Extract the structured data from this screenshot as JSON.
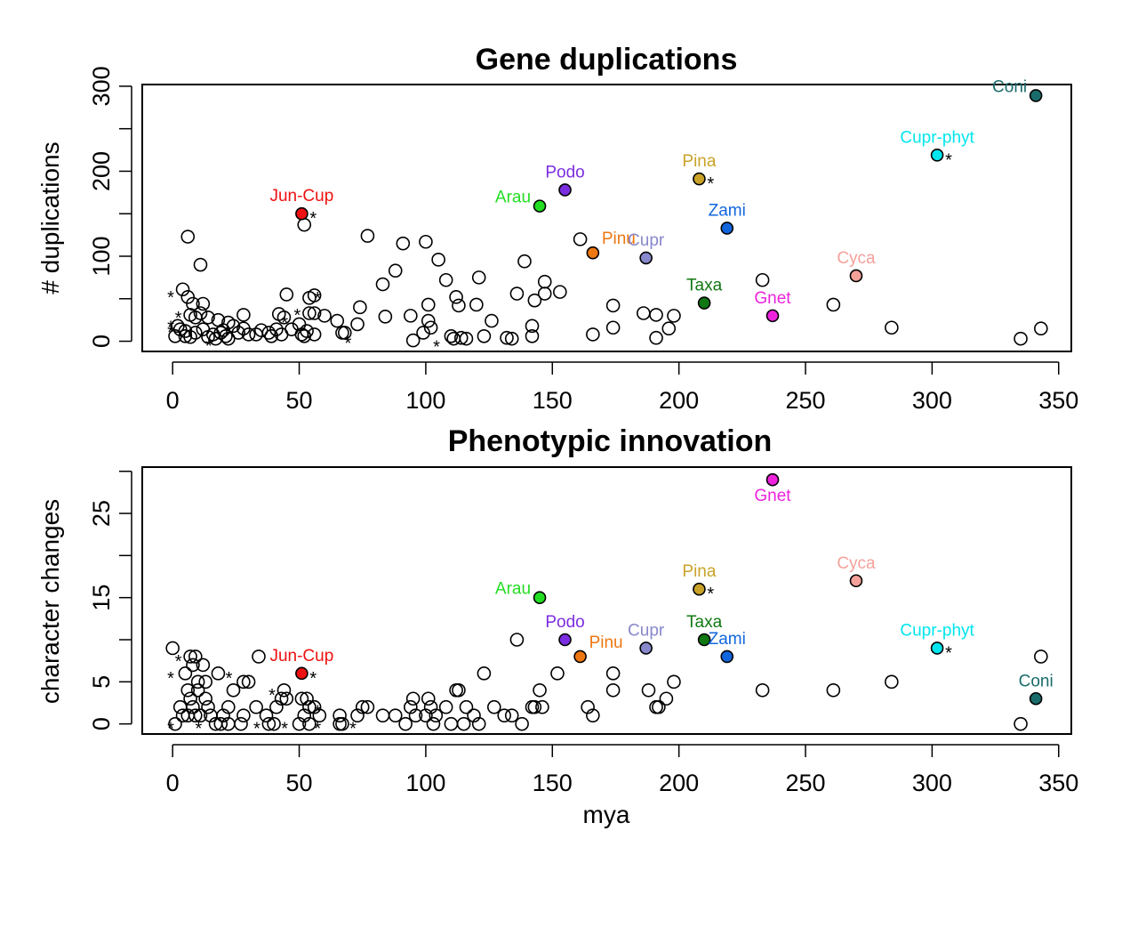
{
  "chart_data": [
    {
      "type": "scatter",
      "title": "Gene duplications",
      "xlabel": "",
      "ylabel": "# duplications",
      "xlim": [
        -12,
        355
      ],
      "ylim": [
        -12,
        302
      ],
      "x_ticks": [
        0,
        50,
        100,
        150,
        200,
        250,
        300,
        350
      ],
      "y_ticks": [
        0,
        100,
        200,
        300
      ],
      "y_minor_ticks": [
        50,
        150,
        250
      ],
      "clades": [
        {
          "label": "Coni",
          "x": 341,
          "y": 289,
          "color": "#1a6b6b",
          "label_pos": "left"
        },
        {
          "label": "Cupr-phyt",
          "x": 302,
          "y": 219,
          "color": "#00e5ee",
          "star": true,
          "label_pos": "above"
        },
        {
          "label": "Pina",
          "x": 208,
          "y": 191,
          "color": "#c9a227",
          "star": true,
          "label_pos": "above"
        },
        {
          "label": "Podo",
          "x": 155,
          "y": 178,
          "color": "#7b2ee0",
          "label_pos": "above"
        },
        {
          "label": "Arau",
          "x": 145,
          "y": 159,
          "color": "#22dd22",
          "label_pos": "left"
        },
        {
          "label": "Jun-Cup",
          "x": 51,
          "y": 150,
          "color": "#ee1111",
          "star": true,
          "label_pos": "above"
        },
        {
          "label": "Zami",
          "x": 219,
          "y": 133,
          "color": "#1166dd",
          "label_pos": "above"
        },
        {
          "label": "Pinu",
          "x": 166,
          "y": 104,
          "color": "#ee7711",
          "label_pos": "right"
        },
        {
          "label": "Cupr",
          "x": 187,
          "y": 98,
          "color": "#8888cc",
          "label_pos": "above"
        },
        {
          "label": "Cyca",
          "x": 270,
          "y": 77,
          "color": "#f4a19a",
          "label_pos": "above"
        },
        {
          "label": "Taxa",
          "x": 210,
          "y": 45,
          "color": "#117711",
          "label_pos": "above"
        },
        {
          "label": "Gnet",
          "x": 237,
          "y": 30,
          "color": "#ee22dd",
          "label_pos": "above"
        }
      ],
      "points": [
        [
          52,
          137
        ],
        [
          6,
          123
        ],
        [
          77,
          124
        ],
        [
          11,
          90
        ],
        [
          91,
          115
        ],
        [
          100,
          117
        ],
        [
          105,
          96
        ],
        [
          139,
          94
        ],
        [
          161,
          120
        ],
        [
          88,
          83
        ],
        [
          83,
          67
        ],
        [
          108,
          72
        ],
        [
          121,
          75
        ],
        [
          147,
          70
        ],
        [
          136,
          56
        ],
        [
          147,
          56
        ],
        [
          153,
          58
        ],
        [
          143,
          48
        ],
        [
          112,
          52
        ],
        [
          113,
          42
        ],
        [
          101,
          43
        ],
        [
          120,
          43
        ],
        [
          174,
          42
        ],
        [
          233,
          72
        ],
        [
          261,
          43
        ],
        [
          6,
          52
        ],
        [
          8,
          44
        ],
        [
          12,
          44
        ],
        [
          4,
          61
        ],
        [
          7,
          31
        ],
        [
          9,
          28
        ],
        [
          11,
          33
        ],
        [
          14,
          28
        ],
        [
          18,
          25
        ],
        [
          22,
          22
        ],
        [
          28,
          31
        ],
        [
          42,
          32
        ],
        [
          44,
          28
        ],
        [
          45,
          55
        ],
        [
          54,
          51
        ],
        [
          56,
          54
        ],
        [
          54,
          33
        ],
        [
          56,
          33
        ],
        [
          60,
          30
        ],
        [
          65,
          24
        ],
        [
          74,
          40
        ],
        [
          73,
          20
        ],
        [
          84,
          29
        ],
        [
          94,
          30
        ],
        [
          101,
          24
        ],
        [
          102,
          16
        ],
        [
          126,
          24
        ],
        [
          142,
          18
        ],
        [
          174,
          16
        ],
        [
          186,
          33
        ],
        [
          191,
          31
        ],
        [
          198,
          30
        ],
        [
          196,
          15
        ],
        [
          166,
          8
        ],
        [
          284,
          16
        ],
        [
          343,
          15
        ],
        [
          335,
          3
        ],
        [
          2,
          18
        ],
        [
          3,
          14
        ],
        [
          5,
          12
        ],
        [
          5,
          6
        ],
        [
          7,
          5
        ],
        [
          1,
          6
        ],
        [
          9,
          10
        ],
        [
          12,
          14
        ],
        [
          14,
          5
        ],
        [
          16,
          8
        ],
        [
          17,
          3
        ],
        [
          19,
          10
        ],
        [
          20,
          13
        ],
        [
          21,
          6
        ],
        [
          22,
          3
        ],
        [
          24,
          18
        ],
        [
          26,
          10
        ],
        [
          28,
          15
        ],
        [
          30,
          8
        ],
        [
          33,
          8
        ],
        [
          35,
          13
        ],
        [
          38,
          10
        ],
        [
          39,
          6
        ],
        [
          41,
          14
        ],
        [
          43,
          8
        ],
        [
          47,
          14
        ],
        [
          50,
          20
        ],
        [
          51,
          8
        ],
        [
          52,
          6
        ],
        [
          53,
          12
        ],
        [
          56,
          8
        ],
        [
          67,
          10
        ],
        [
          68,
          10
        ],
        [
          95,
          1
        ],
        [
          99,
          10
        ],
        [
          110,
          6
        ],
        [
          111,
          3
        ],
        [
          114,
          4
        ],
        [
          116,
          3
        ],
        [
          123,
          6
        ],
        [
          132,
          4
        ],
        [
          134,
          3
        ],
        [
          142,
          6
        ],
        [
          191,
          4
        ]
      ],
      "stars": [
        [
          0,
          57
        ],
        [
          3,
          33
        ],
        [
          0,
          22
        ],
        [
          0,
          16
        ],
        [
          45,
          27
        ],
        [
          58,
          56
        ],
        [
          50,
          36
        ],
        [
          15,
          0
        ],
        [
          70,
          3
        ],
        [
          105,
          -1
        ]
      ]
    },
    {
      "type": "scatter",
      "title": "Phenotypic innovation",
      "xlabel": "mya",
      "ylabel": "character changes",
      "xlim": [
        -12,
        355
      ],
      "ylim": [
        -1.2,
        30.5
      ],
      "x_ticks": [
        0,
        50,
        100,
        150,
        200,
        250,
        300,
        350
      ],
      "y_ticks": [
        0,
        5,
        15,
        25
      ],
      "y_minor_ticks": [
        10,
        20,
        30
      ],
      "clades": [
        {
          "label": "Gnet",
          "x": 237,
          "y": 29,
          "color": "#ee22dd",
          "label_pos": "below"
        },
        {
          "label": "Cyca",
          "x": 270,
          "y": 17,
          "color": "#f4a19a",
          "label_pos": "above"
        },
        {
          "label": "Pina",
          "x": 208,
          "y": 16,
          "color": "#c9a227",
          "star": true,
          "label_pos": "above"
        },
        {
          "label": "Arau",
          "x": 145,
          "y": 15,
          "color": "#22dd22",
          "label_pos": "left"
        },
        {
          "label": "Podo",
          "x": 155,
          "y": 10,
          "color": "#7b2ee0",
          "label_pos": "above"
        },
        {
          "label": "Taxa",
          "x": 210,
          "y": 10,
          "color": "#117711",
          "label_pos": "above"
        },
        {
          "label": "Cupr",
          "x": 187,
          "y": 9,
          "color": "#8888cc",
          "label_pos": "above"
        },
        {
          "label": "Cupr-phyt",
          "x": 302,
          "y": 9,
          "color": "#00e5ee",
          "star": true,
          "label_pos": "above"
        },
        {
          "label": "Pinu",
          "x": 161,
          "y": 8,
          "color": "#ee7711",
          "label_pos": "right"
        },
        {
          "label": "Zami",
          "x": 219,
          "y": 8,
          "color": "#1166dd",
          "label_pos": "above"
        },
        {
          "label": "Jun-Cup",
          "x": 51,
          "y": 6,
          "color": "#ee1111",
          "star": true,
          "label_pos": "above"
        },
        {
          "label": "Coni",
          "x": 341,
          "y": 3,
          "color": "#1a6b6b",
          "label_pos": "above"
        }
      ],
      "points": [
        [
          0,
          9
        ],
        [
          7,
          8
        ],
        [
          9,
          8
        ],
        [
          12,
          7
        ],
        [
          34,
          8
        ],
        [
          136,
          10
        ],
        [
          8,
          7
        ],
        [
          5,
          6
        ],
        [
          18,
          6
        ],
        [
          10,
          5
        ],
        [
          13,
          5
        ],
        [
          28,
          5
        ],
        [
          30,
          5
        ],
        [
          24,
          4
        ],
        [
          44,
          4
        ],
        [
          6,
          4
        ],
        [
          10,
          4
        ],
        [
          7,
          3
        ],
        [
          13,
          3
        ],
        [
          43,
          3
        ],
        [
          45,
          3
        ],
        [
          51,
          3
        ],
        [
          53,
          3
        ],
        [
          3,
          2
        ],
        [
          8,
          2
        ],
        [
          14,
          2
        ],
        [
          22,
          2
        ],
        [
          33,
          2
        ],
        [
          41,
          2
        ],
        [
          54,
          2
        ],
        [
          56,
          2
        ],
        [
          75,
          2
        ],
        [
          77,
          2
        ],
        [
          4,
          1
        ],
        [
          6,
          1
        ],
        [
          9,
          1
        ],
        [
          11,
          1
        ],
        [
          15,
          1
        ],
        [
          20,
          1
        ],
        [
          28,
          1
        ],
        [
          37,
          1
        ],
        [
          52,
          1
        ],
        [
          58,
          1
        ],
        [
          66,
          1
        ],
        [
          73,
          1
        ],
        [
          1,
          0
        ],
        [
          17,
          0
        ],
        [
          19,
          0
        ],
        [
          22,
          0
        ],
        [
          27,
          0
        ],
        [
          38,
          0
        ],
        [
          40,
          0
        ],
        [
          50,
          0
        ],
        [
          54,
          0
        ],
        [
          66,
          0
        ],
        [
          67,
          0
        ],
        [
          92,
          0
        ],
        [
          103,
          0
        ],
        [
          110,
          0
        ],
        [
          115,
          0
        ],
        [
          121,
          0
        ],
        [
          138,
          0
        ],
        [
          83,
          1
        ],
        [
          88,
          1
        ],
        [
          96,
          1
        ],
        [
          100,
          1
        ],
        [
          104,
          1
        ],
        [
          119,
          1
        ],
        [
          131,
          1
        ],
        [
          134,
          1
        ],
        [
          95,
          3
        ],
        [
          101,
          3
        ],
        [
          113,
          4
        ],
        [
          112,
          4
        ],
        [
          145,
          4
        ],
        [
          174,
          4
        ],
        [
          188,
          4
        ],
        [
          94,
          2
        ],
        [
          102,
          2
        ],
        [
          108,
          2
        ],
        [
          116,
          2
        ],
        [
          127,
          2
        ],
        [
          142,
          2
        ],
        [
          143,
          2
        ],
        [
          146,
          2
        ],
        [
          164,
          2
        ],
        [
          166,
          1
        ],
        [
          174,
          6
        ],
        [
          198,
          5
        ],
        [
          195,
          3
        ],
        [
          191,
          2
        ],
        [
          192,
          2
        ],
        [
          233,
          4
        ],
        [
          261,
          4
        ],
        [
          284,
          5
        ],
        [
          343,
          8
        ],
        [
          335,
          0
        ],
        [
          123,
          6
        ],
        [
          152,
          6
        ]
      ],
      "stars": [
        [
          0,
          6
        ],
        [
          3,
          8
        ],
        [
          23,
          6
        ],
        [
          0,
          0
        ],
        [
          11,
          0
        ],
        [
          34,
          0
        ],
        [
          40,
          4
        ],
        [
          45,
          0
        ],
        [
          58,
          2
        ],
        [
          58,
          0
        ],
        [
          72,
          0
        ]
      ]
    }
  ]
}
